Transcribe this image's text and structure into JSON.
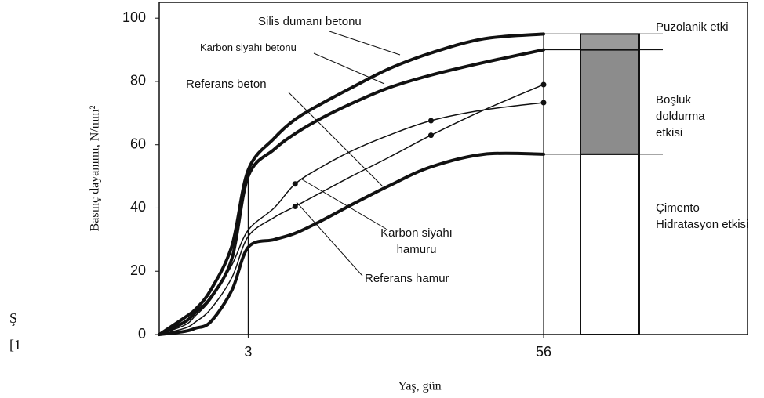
{
  "chart_data": {
    "type": "line",
    "y_label": "Basınç dayanımı, N/mm²",
    "x_label": "Yaş, gün",
    "xscale": "sqrt",
    "xlim": [
      0,
      56
    ],
    "xticks": [
      3,
      56
    ],
    "ylim": [
      0,
      105
    ],
    "yticks": [
      0,
      20,
      40,
      60,
      80,
      100
    ],
    "x": [
      0,
      0.25,
      0.5,
      1,
      2,
      3,
      5,
      7,
      10,
      14,
      20,
      28,
      40,
      56
    ],
    "series": [
      {
        "name": "Silis dumanı betonu",
        "color": "#111111",
        "linewidth": 4,
        "values": [
          0,
          5.4,
          8,
          14,
          28,
          52,
          62,
          68,
          73,
          78,
          84,
          89,
          93.5,
          95
        ]
      },
      {
        "name": "Karbon siyahı betonu",
        "color": "#111111",
        "linewidth": 4,
        "values": [
          0,
          4,
          7,
          11.6,
          24,
          50,
          58.5,
          63.5,
          68.4,
          73,
          78,
          82,
          86,
          90
        ]
      },
      {
        "name": "Referans beton",
        "color": "#111111",
        "linewidth": 1.5,
        "markers": [
          7,
          11,
          13
        ],
        "values": [
          0,
          3,
          6,
          11,
          22,
          33,
          40,
          47.6,
          53,
          58,
          63,
          67.6,
          71,
          73.3
        ]
      },
      {
        "name": "Karbon siyahı hamuru",
        "color": "#111111",
        "linewidth": 1.5,
        "markers": [
          7,
          11,
          13
        ],
        "values": [
          0,
          2,
          4,
          8,
          18,
          31,
          37,
          40.5,
          45,
          50,
          56,
          63,
          71,
          79
        ]
      },
      {
        "name": "Referans hamur",
        "color": "#111111",
        "linewidth": 4,
        "values": [
          0,
          1,
          2,
          4,
          14,
          27.6,
          30,
          32,
          36,
          41,
          47,
          53,
          57,
          57
        ]
      }
    ],
    "bar": {
      "segments": [
        {
          "name": "Çimento Hidratasyon etkisi",
          "value": 57,
          "color": "#ffffff"
        },
        {
          "name": "Boşluk doldurma etkisi",
          "value": 33,
          "color": "#8c8c8c"
        },
        {
          "name": "Puzolanik etki",
          "value": 5,
          "color": "#9a9a9a"
        }
      ]
    },
    "fragments": [
      "Ş",
      "[1"
    ]
  }
}
